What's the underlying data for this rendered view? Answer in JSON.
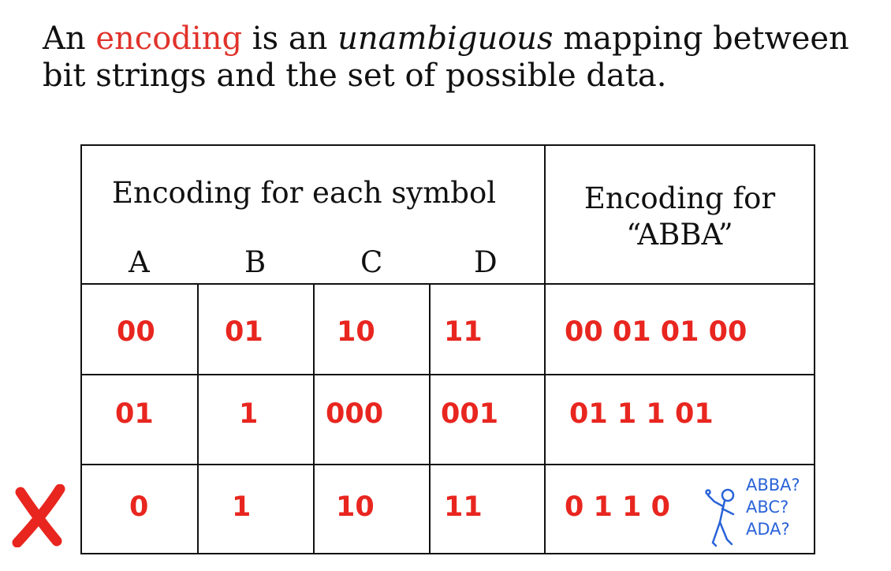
{
  "intro": {
    "part1": "An ",
    "keyword": "encoding",
    "part2": " is an ",
    "emphasis": "unambiguous",
    "part3": " mapping between bit strings and the set of possible data."
  },
  "table": {
    "header_symbol": "Encoding for each symbol",
    "header_abba": "Encoding for “ABBA”",
    "symbols": [
      "A",
      "B",
      "C",
      "D"
    ],
    "rows": [
      {
        "codes": [
          "00",
          "01",
          "10",
          "11"
        ],
        "abba": "00 01 01 00"
      },
      {
        "codes": [
          "01",
          "1",
          "000",
          "001"
        ],
        "abba": "01 1 1 01"
      },
      {
        "codes": [
          "0",
          "1",
          "10",
          "11"
        ],
        "abba": "0 1 1 0"
      }
    ]
  },
  "ambiguity": {
    "guesses": [
      "ABBA?",
      "ABC?",
      "ADA?"
    ],
    "mark_color": "#e8261f",
    "figure_color": "#2a63d8"
  },
  "colors": {
    "accent": "#e0332b"
  }
}
